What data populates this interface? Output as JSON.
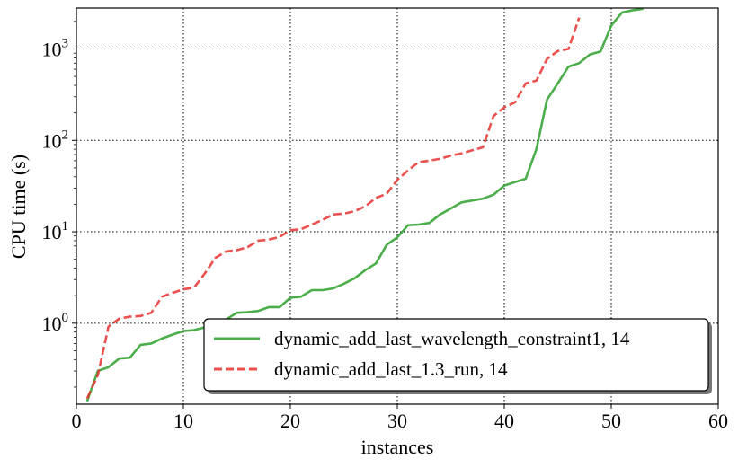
{
  "chart_data": {
    "type": "line",
    "xlabel": "instances",
    "ylabel": "CPU time (s)",
    "xlim": [
      0,
      60
    ],
    "ylim": [
      0.13,
      2800
    ],
    "y_scale": "log",
    "grid": true,
    "legend_position": "lower-right",
    "x_ticks": [
      {
        "value": 0,
        "label": "0"
      },
      {
        "value": 10,
        "label": "10"
      },
      {
        "value": 20,
        "label": "20"
      },
      {
        "value": 30,
        "label": "30"
      },
      {
        "value": 40,
        "label": "40"
      },
      {
        "value": 50,
        "label": "50"
      },
      {
        "value": 60,
        "label": "60"
      }
    ],
    "y_ticks": [
      {
        "value": 1,
        "base": "10",
        "exp": "0"
      },
      {
        "value": 10,
        "base": "10",
        "exp": "1"
      },
      {
        "value": 100,
        "base": "10",
        "exp": "2"
      },
      {
        "value": 1000,
        "base": "10",
        "exp": "3"
      }
    ],
    "series": [
      {
        "name": "dynamic_add_last_wavelength_constraint1, 14",
        "color": "#2ca02c",
        "style": "solid",
        "x": [
          1,
          2,
          3,
          4,
          5,
          6,
          7,
          8,
          9,
          10,
          11,
          12,
          13,
          14,
          15,
          16,
          17,
          18,
          19,
          20,
          21,
          22,
          23,
          24,
          25,
          26,
          27,
          28,
          29,
          30,
          31,
          32,
          33,
          34,
          35,
          36,
          37,
          38,
          39,
          40,
          41,
          42,
          43,
          44,
          45,
          46,
          47,
          48,
          49,
          50,
          51,
          52,
          53
        ],
        "y": [
          0.14,
          0.3,
          0.33,
          0.41,
          0.42,
          0.58,
          0.6,
          0.68,
          0.75,
          0.82,
          0.84,
          0.9,
          0.99,
          1.1,
          1.3,
          1.32,
          1.36,
          1.5,
          1.5,
          1.9,
          1.95,
          2.3,
          2.3,
          2.4,
          2.7,
          3.1,
          3.8,
          4.5,
          7.2,
          8.7,
          11.8,
          12,
          12.5,
          15.5,
          18,
          21,
          22,
          23,
          25.5,
          32,
          35,
          38,
          80,
          280,
          420,
          640,
          700,
          870,
          940,
          1800,
          2500,
          2650,
          2750
        ]
      },
      {
        "name": "dynamic_add_last_1.3_run, 14",
        "color": "#e8312f",
        "style": "dashed",
        "x": [
          1,
          2,
          3,
          4,
          5,
          6,
          7,
          8,
          9,
          10,
          11,
          12,
          13,
          14,
          15,
          16,
          17,
          18,
          19,
          20,
          21,
          22,
          23,
          24,
          25,
          26,
          27,
          28,
          29,
          30,
          31,
          32,
          33,
          34,
          35,
          36,
          37,
          38,
          39,
          40,
          41,
          42,
          43,
          44,
          45,
          46,
          47
        ],
        "y": [
          0.15,
          0.27,
          0.92,
          1.12,
          1.18,
          1.2,
          1.3,
          1.95,
          2.15,
          2.35,
          2.45,
          3.5,
          5.2,
          6.1,
          6.3,
          6.8,
          8,
          8.2,
          8.8,
          10.4,
          10.7,
          12,
          13.5,
          15.5,
          15.8,
          16.8,
          19,
          23.5,
          26,
          37,
          47,
          58,
          60,
          63,
          68,
          72,
          78,
          84,
          185,
          230,
          260,
          420,
          450,
          780,
          950,
          1000,
          2200
        ]
      }
    ]
  }
}
